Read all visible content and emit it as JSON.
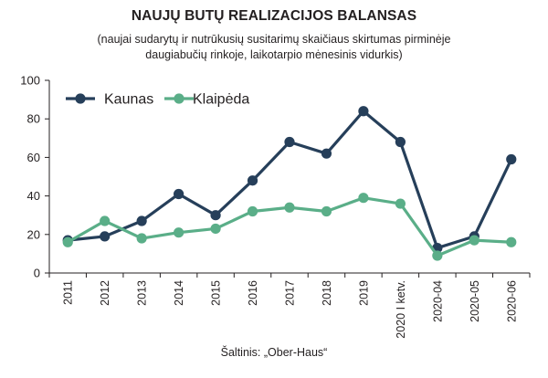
{
  "title": "NAUJŲ BUTŲ REALIZACIJOS BALANSAS",
  "subtitle_line1": "(naujai sudarytų ir nutrūkusių susitarimų skaičiaus skirtumas pirminėje",
  "subtitle_line2": "daugiabučių rinkoje, laikotarpio mėnesinis vidurkis)",
  "source": "Šaltinis: „Ober-Haus“",
  "colors": {
    "kaunas": "#263f5a",
    "klaipeda": "#5aae88"
  },
  "chart_data": {
    "type": "line",
    "categories": [
      "2011",
      "2012",
      "2013",
      "2014",
      "2015",
      "2016",
      "2017",
      "2018",
      "2019",
      "2020 I ketv.",
      "2020-04",
      "2020-05",
      "2020-06"
    ],
    "series": [
      {
        "name": "Kaunas",
        "values": [
          17,
          19,
          27,
          41,
          30,
          48,
          68,
          62,
          84,
          68,
          13,
          19,
          59
        ]
      },
      {
        "name": "Klaipėda",
        "values": [
          16,
          27,
          18,
          21,
          23,
          32,
          34,
          32,
          39,
          36,
          9,
          17,
          16
        ]
      }
    ],
    "yticks": [
      0,
      20,
      40,
      60,
      80,
      100
    ],
    "ylim": [
      0,
      100
    ],
    "legend": "top-left",
    "grid": false
  }
}
